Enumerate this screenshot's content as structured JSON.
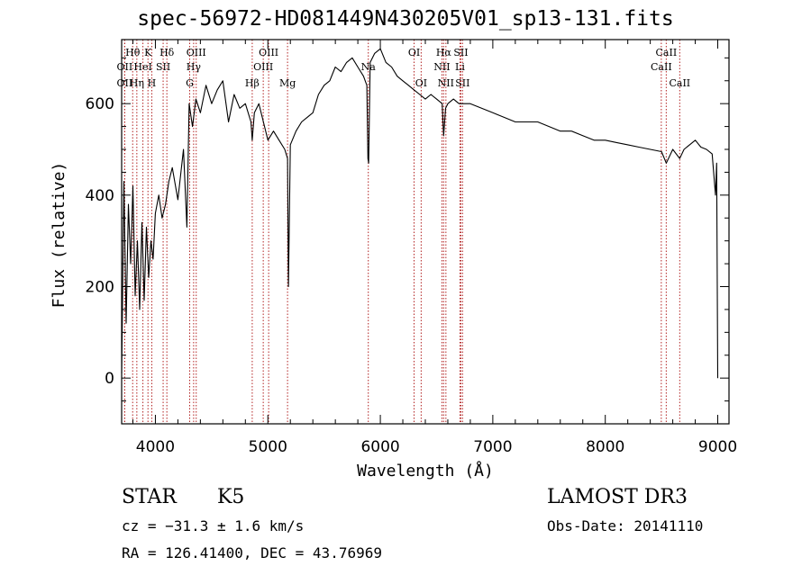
{
  "chart_data": {
    "type": "line",
    "title": "spec-56972-HD081449N430205V01_sp13-131.fits",
    "xlabel": "Wavelength (Å)",
    "ylabel": "Flux (relative)",
    "xlim": [
      3700,
      9100
    ],
    "ylim": [
      -100,
      740
    ],
    "xticks": [
      4000,
      5000,
      6000,
      7000,
      8000,
      9000
    ],
    "yticks": [
      0,
      200,
      400,
      600
    ],
    "grid": false,
    "series": [
      {
        "name": "spectrum",
        "x": [
          3700,
          3720,
          3740,
          3760,
          3780,
          3800,
          3820,
          3840,
          3860,
          3880,
          3900,
          3920,
          3940,
          3960,
          3980,
          4000,
          4030,
          4060,
          4090,
          4120,
          4150,
          4200,
          4250,
          4280,
          4300,
          4330,
          4360,
          4400,
          4450,
          4500,
          4550,
          4600,
          4650,
          4700,
          4750,
          4800,
          4850,
          4861,
          4880,
          4920,
          4960,
          5000,
          5050,
          5100,
          5150,
          5175,
          5183,
          5200,
          5250,
          5300,
          5350,
          5400,
          5450,
          5500,
          5550,
          5600,
          5650,
          5700,
          5750,
          5800,
          5850,
          5880,
          5890,
          5896,
          5910,
          5950,
          6000,
          6050,
          6100,
          6150,
          6200,
          6250,
          6300,
          6350,
          6400,
          6450,
          6500,
          6550,
          6563,
          6580,
          6600,
          6650,
          6700,
          6750,
          6800,
          6900,
          7000,
          7100,
          7200,
          7300,
          7400,
          7500,
          7600,
          7700,
          7800,
          7900,
          8000,
          8100,
          8200,
          8300,
          8400,
          8500,
          8542,
          8600,
          8662,
          8700,
          8750,
          8800,
          8850,
          8900,
          8950,
          8980,
          8990,
          9000
        ],
        "values": [
          10,
          430,
          120,
          380,
          250,
          420,
          180,
          300,
          150,
          340,
          170,
          330,
          220,
          300,
          260,
          360,
          400,
          350,
          380,
          430,
          460,
          390,
          500,
          330,
          600,
          550,
          610,
          580,
          640,
          600,
          630,
          650,
          560,
          620,
          590,
          600,
          560,
          520,
          580,
          600,
          560,
          520,
          540,
          520,
          500,
          480,
          200,
          510,
          540,
          560,
          570,
          580,
          620,
          640,
          650,
          680,
          670,
          690,
          700,
          680,
          660,
          640,
          480,
          470,
          690,
          710,
          720,
          690,
          680,
          660,
          650,
          640,
          630,
          620,
          610,
          620,
          610,
          600,
          530,
          590,
          600,
          610,
          600,
          600,
          600,
          590,
          580,
          570,
          560,
          560,
          560,
          550,
          540,
          540,
          530,
          520,
          520,
          515,
          510,
          505,
          500,
          495,
          470,
          500,
          480,
          500,
          510,
          520,
          505,
          500,
          490,
          400,
          470,
          0
        ]
      }
    ],
    "line_labels": [
      {
        "label": "Hθ",
        "wavelength": 3798,
        "row": 1
      },
      {
        "label": "K",
        "wavelength": 3934,
        "row": 1
      },
      {
        "label": "Hδ",
        "wavelength": 4102,
        "row": 1
      },
      {
        "label": "OII",
        "wavelength": 3727,
        "row": 2
      },
      {
        "label": "HeI",
        "wavelength": 3889,
        "row": 2
      },
      {
        "label": "SII",
        "wavelength": 4069,
        "row": 2
      },
      {
        "label": "OII",
        "wavelength": 3727,
        "row": 3
      },
      {
        "label": "Hη",
        "wavelength": 3835,
        "row": 3
      },
      {
        "label": "H",
        "wavelength": 3968,
        "row": 3
      },
      {
        "label": "OIII",
        "wavelength": 4363,
        "row": 1
      },
      {
        "label": "Hγ",
        "wavelength": 4340,
        "row": 2
      },
      {
        "label": "G",
        "wavelength": 4305,
        "row": 3
      },
      {
        "label": "OIII",
        "wavelength": 5007,
        "row": 1
      },
      {
        "label": "OIII",
        "wavelength": 4959,
        "row": 2
      },
      {
        "label": "Hβ",
        "wavelength": 4861,
        "row": 3
      },
      {
        "label": "Mg",
        "wavelength": 5175,
        "row": 3
      },
      {
        "label": "Na",
        "wavelength": 5893,
        "row": 2
      },
      {
        "label": "OI",
        "wavelength": 6300,
        "row": 1
      },
      {
        "label": "OI",
        "wavelength": 6363,
        "row": 3
      },
      {
        "label": "Hα",
        "wavelength": 6563,
        "row": 1
      },
      {
        "label": "NII",
        "wavelength": 6548,
        "row": 2
      },
      {
        "label": "NII",
        "wavelength": 6583,
        "row": 3
      },
      {
        "label": "SII",
        "wavelength": 6716,
        "row": 1
      },
      {
        "label": "Li",
        "wavelength": 6708,
        "row": 2
      },
      {
        "label": "SII",
        "wavelength": 6731,
        "row": 3
      },
      {
        "label": "CaII",
        "wavelength": 8542,
        "row": 1
      },
      {
        "label": "CaII",
        "wavelength": 8498,
        "row": 2
      },
      {
        "label": "CaII",
        "wavelength": 8662,
        "row": 3
      }
    ]
  },
  "info": {
    "class": "STAR",
    "subclass": "K5",
    "survey": "LAMOST DR3",
    "velocity": "cz = −31.3 ± 1.6 km/s",
    "obs_date": "Obs-Date: 20141110",
    "coords": "RA = 126.41400, DEC =  43.76969"
  }
}
